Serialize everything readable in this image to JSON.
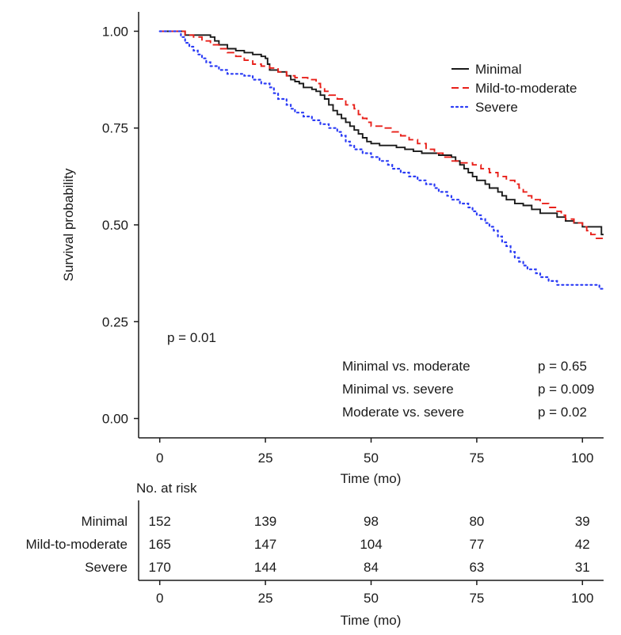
{
  "chart_data": {
    "type": "line",
    "subtype": "kaplan-meier",
    "title": "",
    "xlabel": "Time (mo)",
    "ylabel": "Survival probability",
    "xlim": [
      -5,
      105
    ],
    "ylim": [
      -0.05,
      1.05
    ],
    "x_ticks": [
      0,
      25,
      50,
      75,
      100
    ],
    "y_ticks": [
      0.0,
      0.25,
      0.5,
      0.75,
      1.0
    ],
    "y_tick_labels": [
      "0.00",
      "0.25",
      "0.50",
      "0.75",
      "1.00"
    ],
    "legend_position": "top-right",
    "series": [
      {
        "name": "Minimal",
        "color": "#1a1a1a",
        "dash": "solid",
        "points": [
          [
            0,
            1.0
          ],
          [
            5,
            1.0
          ],
          [
            6,
            0.99
          ],
          [
            12,
            0.985
          ],
          [
            13,
            0.975
          ],
          [
            14,
            0.965
          ],
          [
            16,
            0.955
          ],
          [
            18,
            0.95
          ],
          [
            20,
            0.945
          ],
          [
            22,
            0.94
          ],
          [
            24,
            0.935
          ],
          [
            25,
            0.93
          ],
          [
            25.5,
            0.915
          ],
          [
            26,
            0.9
          ],
          [
            28,
            0.895
          ],
          [
            30,
            0.885
          ],
          [
            31,
            0.875
          ],
          [
            32,
            0.87
          ],
          [
            33,
            0.865
          ],
          [
            34,
            0.855
          ],
          [
            36,
            0.85
          ],
          [
            37,
            0.845
          ],
          [
            38,
            0.835
          ],
          [
            39,
            0.825
          ],
          [
            40,
            0.81
          ],
          [
            41,
            0.795
          ],
          [
            42,
            0.785
          ],
          [
            43,
            0.775
          ],
          [
            44,
            0.765
          ],
          [
            45,
            0.755
          ],
          [
            46,
            0.745
          ],
          [
            47,
            0.735
          ],
          [
            48,
            0.725
          ],
          [
            49,
            0.715
          ],
          [
            50,
            0.71
          ],
          [
            52,
            0.705
          ],
          [
            56,
            0.7
          ],
          [
            58,
            0.695
          ],
          [
            60,
            0.69
          ],
          [
            62,
            0.685
          ],
          [
            66,
            0.68
          ],
          [
            69,
            0.675
          ],
          [
            70,
            0.665
          ],
          [
            71,
            0.655
          ],
          [
            72,
            0.645
          ],
          [
            73,
            0.635
          ],
          [
            74,
            0.625
          ],
          [
            75,
            0.615
          ],
          [
            77,
            0.605
          ],
          [
            78,
            0.595
          ],
          [
            80,
            0.585
          ],
          [
            81,
            0.575
          ],
          [
            82,
            0.565
          ],
          [
            84,
            0.555
          ],
          [
            86,
            0.55
          ],
          [
            88,
            0.54
          ],
          [
            90,
            0.53
          ],
          [
            94,
            0.52
          ],
          [
            96,
            0.51
          ],
          [
            98,
            0.505
          ],
          [
            100,
            0.495
          ],
          [
            104,
            0.495
          ],
          [
            104.5,
            0.475
          ],
          [
            105,
            0.475
          ]
        ]
      },
      {
        "name": "Mild-to-moderate",
        "color": "#e8201a",
        "dash": "dashed",
        "points": [
          [
            0,
            1.0
          ],
          [
            5,
            1.0
          ],
          [
            6,
            0.99
          ],
          [
            8,
            0.985
          ],
          [
            10,
            0.975
          ],
          [
            12,
            0.965
          ],
          [
            14,
            0.955
          ],
          [
            16,
            0.945
          ],
          [
            18,
            0.935
          ],
          [
            20,
            0.925
          ],
          [
            22,
            0.915
          ],
          [
            24,
            0.91
          ],
          [
            26,
            0.905
          ],
          [
            28,
            0.895
          ],
          [
            30,
            0.885
          ],
          [
            32,
            0.88
          ],
          [
            35,
            0.875
          ],
          [
            37,
            0.865
          ],
          [
            38,
            0.855
          ],
          [
            39,
            0.845
          ],
          [
            40,
            0.835
          ],
          [
            42,
            0.825
          ],
          [
            44,
            0.81
          ],
          [
            46,
            0.8
          ],
          [
            47,
            0.785
          ],
          [
            48,
            0.775
          ],
          [
            49,
            0.765
          ],
          [
            50,
            0.755
          ],
          [
            53,
            0.75
          ],
          [
            55,
            0.74
          ],
          [
            57,
            0.73
          ],
          [
            59,
            0.72
          ],
          [
            61,
            0.71
          ],
          [
            63,
            0.695
          ],
          [
            65,
            0.685
          ],
          [
            67,
            0.675
          ],
          [
            69,
            0.665
          ],
          [
            71,
            0.66
          ],
          [
            74,
            0.655
          ],
          [
            76,
            0.645
          ],
          [
            78,
            0.635
          ],
          [
            80,
            0.625
          ],
          [
            82,
            0.615
          ],
          [
            84,
            0.605
          ],
          [
            85,
            0.595
          ],
          [
            86,
            0.585
          ],
          [
            87,
            0.575
          ],
          [
            88,
            0.565
          ],
          [
            90,
            0.555
          ],
          [
            92,
            0.545
          ],
          [
            94,
            0.535
          ],
          [
            95,
            0.525
          ],
          [
            96,
            0.515
          ],
          [
            98,
            0.505
          ],
          [
            100,
            0.495
          ],
          [
            101,
            0.485
          ],
          [
            102,
            0.475
          ],
          [
            103,
            0.465
          ],
          [
            105,
            0.465
          ]
        ]
      },
      {
        "name": "Severe",
        "color": "#2b3cf5",
        "dash": "dotted",
        "points": [
          [
            0,
            1.0
          ],
          [
            4,
            1.0
          ],
          [
            5,
            0.985
          ],
          [
            6,
            0.97
          ],
          [
            7,
            0.96
          ],
          [
            8,
            0.95
          ],
          [
            9,
            0.94
          ],
          [
            10,
            0.93
          ],
          [
            11,
            0.92
          ],
          [
            12,
            0.91
          ],
          [
            14,
            0.9
          ],
          [
            16,
            0.89
          ],
          [
            20,
            0.885
          ],
          [
            22,
            0.875
          ],
          [
            24,
            0.865
          ],
          [
            26,
            0.855
          ],
          [
            27,
            0.84
          ],
          [
            28,
            0.825
          ],
          [
            30,
            0.81
          ],
          [
            31,
            0.8
          ],
          [
            32,
            0.79
          ],
          [
            34,
            0.78
          ],
          [
            36,
            0.77
          ],
          [
            38,
            0.76
          ],
          [
            40,
            0.75
          ],
          [
            42,
            0.74
          ],
          [
            43,
            0.73
          ],
          [
            44,
            0.715
          ],
          [
            45,
            0.705
          ],
          [
            46,
            0.695
          ],
          [
            48,
            0.685
          ],
          [
            50,
            0.675
          ],
          [
            52,
            0.665
          ],
          [
            54,
            0.655
          ],
          [
            55,
            0.645
          ],
          [
            57,
            0.635
          ],
          [
            59,
            0.625
          ],
          [
            61,
            0.615
          ],
          [
            63,
            0.605
          ],
          [
            65,
            0.595
          ],
          [
            66,
            0.585
          ],
          [
            68,
            0.575
          ],
          [
            69,
            0.565
          ],
          [
            71,
            0.555
          ],
          [
            73,
            0.545
          ],
          [
            74,
            0.535
          ],
          [
            75,
            0.525
          ],
          [
            76,
            0.515
          ],
          [
            77,
            0.505
          ],
          [
            78,
            0.495
          ],
          [
            79,
            0.485
          ],
          [
            80,
            0.47
          ],
          [
            81,
            0.455
          ],
          [
            82,
            0.445
          ],
          [
            83,
            0.43
          ],
          [
            84,
            0.415
          ],
          [
            85,
            0.405
          ],
          [
            86,
            0.395
          ],
          [
            87,
            0.385
          ],
          [
            89,
            0.375
          ],
          [
            90,
            0.365
          ],
          [
            92,
            0.355
          ],
          [
            94,
            0.345
          ],
          [
            100,
            0.345
          ],
          [
            104,
            0.335
          ],
          [
            105,
            0.335
          ]
        ]
      }
    ],
    "annotations": {
      "overall_p": "p = 0.01",
      "comparisons": [
        {
          "label": "Minimal vs. moderate",
          "p": "p = 0.65"
        },
        {
          "label": "Minimal vs. severe",
          "p": "p = 0.009"
        },
        {
          "label": "Moderate vs. severe",
          "p": "p = 0.02"
        }
      ]
    },
    "risk_table": {
      "title": "No. at risk",
      "xlabel": "Time (mo)",
      "times": [
        0,
        25,
        50,
        75,
        100
      ],
      "rows": [
        {
          "name": "Minimal",
          "color": "#1a1a1a",
          "counts": [
            "152",
            "139",
            "98",
            "80",
            "39"
          ]
        },
        {
          "name": "Mild-to-moderate",
          "color": "#e8201a",
          "counts": [
            "165",
            "147",
            "104",
            "77",
            "42"
          ]
        },
        {
          "name": "Severe",
          "color": "#2b3cf5",
          "counts": [
            "170",
            "144",
            "84",
            "63",
            "31"
          ]
        }
      ]
    }
  }
}
